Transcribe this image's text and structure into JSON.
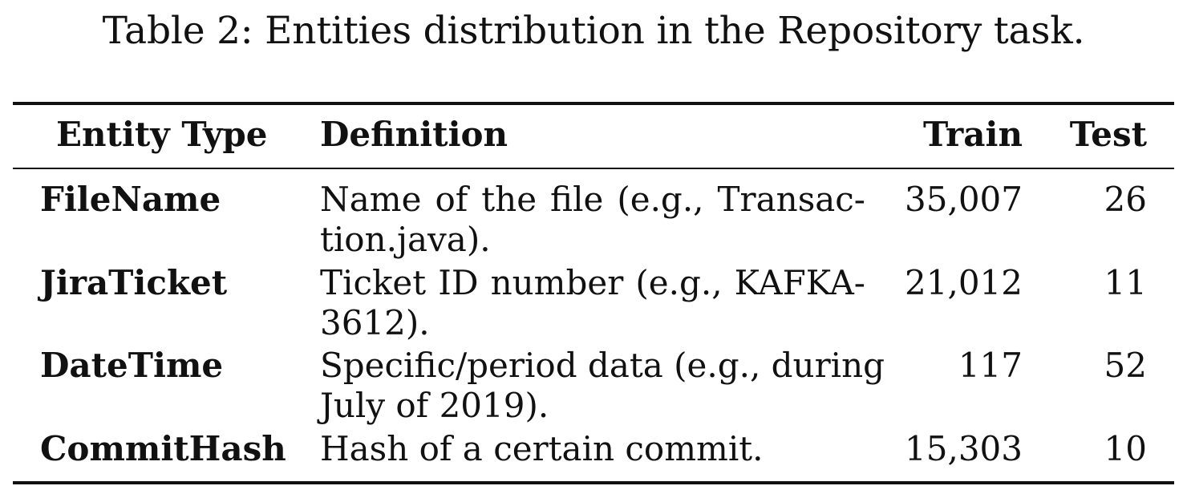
{
  "caption": "Table 2: Entities distribution in the Repository task.",
  "table": {
    "headers": {
      "entity_type": "Entity Type",
      "definition": "Definition",
      "train": "Train",
      "test": "Test"
    },
    "rows": [
      {
        "entity_type": "FileName",
        "definition_line1": "Name of the file (e.g., Transac-",
        "definition_line2": "tion.java).",
        "train": "35,007",
        "test": "26"
      },
      {
        "entity_type": "JiraTicket",
        "definition_line1": "Ticket ID number (e.g., KAFKA-",
        "definition_line2": "3612).",
        "train": "21,012",
        "test": "11"
      },
      {
        "entity_type": "DateTime",
        "definition_line1": "Specific/period data (e.g., during",
        "definition_line2": "July of 2019).",
        "train": "117",
        "test": "52"
      },
      {
        "entity_type": "CommitHash",
        "definition_line1": "Hash of a certain commit.",
        "definition_line2": "",
        "train": "15,303",
        "test": "10"
      }
    ]
  }
}
